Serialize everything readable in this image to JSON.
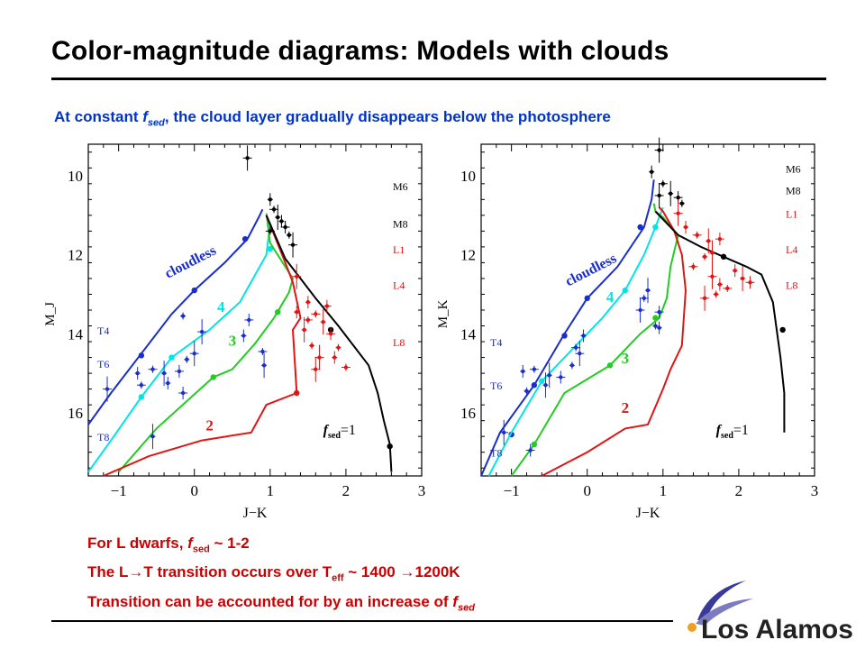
{
  "slide": {
    "title": "Color-magnitude diagrams: Models with clouds",
    "subtitle_pre": "At constant ",
    "subtitle_f": "f",
    "subtitle_sub": "sed",
    "subtitle_post": ", the cloud layer gradually disappears below the photosphere"
  },
  "notes": {
    "line1_pre": "For L dwarfs, ",
    "line1_f": "f",
    "line1_sub": "sed",
    "line1_post": " ~ 1-2",
    "line2_pre": "The L",
    "line2_arrow": "→",
    "line2_mid": "T transition occurs over T",
    "line2_sub": "eff",
    "line2_post": "  ~ 1400 ",
    "line2_arrow2": "→",
    "line2_end": "1200K",
    "line3_pre": "Transition can be accounted for by an increase of ",
    "line3_f": "f",
    "line3_sub": "sed"
  },
  "logo": {
    "text": "Los Alamos"
  },
  "colors": {
    "cloudless": "#1a2ecc",
    "fsed4": "#00e5e5",
    "fsed3": "#22cc22",
    "fsed2": "#e01515",
    "fsed1": "#000000",
    "tdwarf": "#1a2ecc",
    "ldwarf": "#e01515",
    "mdwarf": "#000000"
  },
  "chart_data": [
    {
      "type": "line",
      "xlabel": "J−K",
      "ylabel": "M_J",
      "xlim": [
        -1.4,
        3.0
      ],
      "ylim": [
        17.6,
        9.2
      ],
      "xticks": [
        "−1",
        "0",
        "1",
        "2",
        "3"
      ],
      "yticks": [
        "10",
        "12",
        "14",
        "16"
      ],
      "spectral_labels": [
        {
          "text": "M6",
          "y": 10.25,
          "group": "M"
        },
        {
          "text": "M8",
          "y": 11.2,
          "group": "M"
        },
        {
          "text": "L1",
          "y": 11.85,
          "group": "L"
        },
        {
          "text": "L4",
          "y": 12.75,
          "group": "L"
        },
        {
          "text": "L8",
          "y": 14.2,
          "group": "L"
        },
        {
          "text": "T4",
          "y": 13.9,
          "group": "T"
        },
        {
          "text": "T6",
          "y": 14.75,
          "group": "T"
        },
        {
          "text": "T8",
          "y": 16.6,
          "group": "T"
        }
      ],
      "series": [
        {
          "name": "cloudless",
          "color_key": "cloudless",
          "label_text": "cloudless",
          "label_at": [
            -0.35,
            12.6
          ],
          "x": [
            -1.4,
            -1.1,
            -0.7,
            -0.3,
            0.0,
            0.4,
            0.7,
            0.85,
            0.9
          ],
          "y": [
            16.3,
            15.5,
            14.5,
            13.5,
            12.9,
            12.2,
            11.6,
            11.05,
            10.85
          ],
          "markers": [
            [
              -0.7,
              14.55
            ],
            [
              0.0,
              12.9
            ],
            [
              0.67,
              11.6
            ]
          ]
        },
        {
          "name": "4",
          "color_key": "fsed4",
          "label_text": "4",
          "label_at": [
            0.3,
            13.45
          ],
          "x": [
            -1.4,
            -1.1,
            -0.7,
            -0.3,
            0.2,
            0.6,
            0.95,
            1.0
          ],
          "y": [
            17.5,
            16.7,
            15.6,
            14.6,
            13.9,
            13.2,
            12.0,
            11.2
          ],
          "markers": [
            [
              -0.7,
              15.6
            ],
            [
              -0.3,
              14.6
            ],
            [
              1.0,
              11.85
            ]
          ]
        },
        {
          "name": "3",
          "color_key": "fsed3",
          "label_text": "3",
          "label_at": [
            0.45,
            14.3
          ],
          "x": [
            -1.0,
            -0.5,
            0.25,
            0.5,
            0.8,
            1.05,
            1.25,
            1.3,
            1.0,
            0.95
          ],
          "y": [
            17.5,
            16.4,
            15.1,
            14.9,
            14.25,
            13.6,
            12.95,
            12.6,
            11.7,
            10.95
          ],
          "markers": [
            [
              0.25,
              15.1
            ],
            [
              1.1,
              13.45
            ]
          ]
        },
        {
          "name": "2",
          "color_key": "fsed2",
          "label_text": "2",
          "label_at": [
            0.15,
            16.45
          ],
          "x": [
            -1.2,
            -0.6,
            0.1,
            0.75,
            0.95,
            1.35,
            1.3,
            1.4,
            1.3,
            1.2,
            0.95
          ],
          "y": [
            17.6,
            17.1,
            16.7,
            16.5,
            15.8,
            15.5,
            13.9,
            13.6,
            12.7,
            12.2,
            11.0
          ],
          "markers": [
            [
              1.35,
              15.5
            ]
          ]
        },
        {
          "name": "f_sed = 1",
          "color_key": "fsed1",
          "label_text": "f",
          "label_at": [
            1.7,
            16.55
          ],
          "x": [
            0.95,
            1.2,
            1.6,
            1.9,
            2.1,
            2.3,
            2.42,
            2.5,
            2.58,
            2.6
          ],
          "y": [
            11.0,
            12.1,
            13.1,
            13.8,
            14.3,
            14.8,
            15.5,
            16.2,
            16.8,
            17.5
          ],
          "markers": [
            [
              1.8,
              13.9
            ],
            [
              2.58,
              16.85
            ]
          ]
        }
      ],
      "observed": {
        "M": [
          [
            0.7,
            9.55
          ],
          [
            1.0,
            10.6
          ],
          [
            1.05,
            10.85
          ],
          [
            1.1,
            11.05
          ],
          [
            1.2,
            11.3
          ],
          [
            1.25,
            11.5
          ],
          [
            1.3,
            11.75
          ],
          [
            1.15,
            11.15
          ],
          [
            1.0,
            11.4
          ]
        ],
        "L": [
          [
            1.35,
            12.55
          ],
          [
            1.5,
            13.2
          ],
          [
            1.6,
            13.5
          ],
          [
            1.7,
            13.7
          ],
          [
            1.8,
            14.0
          ],
          [
            1.55,
            14.3
          ],
          [
            1.65,
            14.6
          ],
          [
            1.85,
            14.6
          ],
          [
            2.0,
            14.85
          ],
          [
            1.45,
            13.9
          ],
          [
            1.75,
            13.3
          ],
          [
            1.9,
            14.35
          ],
          [
            1.6,
            14.9
          ],
          [
            1.35,
            13.45
          ],
          [
            1.5,
            13.65
          ]
        ],
        "T": [
          [
            -1.15,
            15.4
          ],
          [
            -0.75,
            15.0
          ],
          [
            -0.55,
            14.9
          ],
          [
            -0.4,
            15.0
          ],
          [
            -0.2,
            14.95
          ],
          [
            -0.1,
            14.65
          ],
          [
            0.0,
            14.5
          ],
          [
            -0.35,
            15.25
          ],
          [
            -0.7,
            15.3
          ],
          [
            -0.55,
            16.6
          ],
          [
            -0.15,
            15.5
          ],
          [
            -0.15,
            13.55
          ],
          [
            0.1,
            13.95
          ],
          [
            0.65,
            14.05
          ],
          [
            0.9,
            14.45
          ],
          [
            0.92,
            14.8
          ],
          [
            0.72,
            13.65
          ]
        ]
      }
    },
    {
      "type": "line",
      "xlabel": "J−K",
      "ylabel": "M_K",
      "xlim": [
        -1.4,
        3.0
      ],
      "ylim": [
        17.6,
        9.2
      ],
      "xticks": [
        "−1",
        "0",
        "1",
        "2",
        "3"
      ],
      "yticks": [
        "10",
        "12",
        "14",
        "16"
      ],
      "spectral_labels": [
        {
          "text": "M6",
          "y": 9.8,
          "group": "M"
        },
        {
          "text": "M8",
          "y": 10.35,
          "group": "M"
        },
        {
          "text": "L1",
          "y": 10.95,
          "group": "L"
        },
        {
          "text": "L4",
          "y": 11.85,
          "group": "L"
        },
        {
          "text": "L8",
          "y": 12.75,
          "group": "L"
        },
        {
          "text": "T4",
          "y": 14.2,
          "group": "T"
        },
        {
          "text": "T6",
          "y": 15.3,
          "group": "T"
        },
        {
          "text": "T8",
          "y": 17.0,
          "group": "T"
        }
      ],
      "series": [
        {
          "name": "cloudless",
          "color_key": "cloudless",
          "label_text": "cloudless",
          "label_at": [
            -0.25,
            12.8
          ],
          "x": [
            -1.4,
            -1.15,
            -0.7,
            -0.3,
            0.0,
            0.4,
            0.75,
            0.85,
            0.88
          ],
          "y": [
            17.6,
            16.5,
            15.3,
            14.0,
            13.1,
            12.3,
            11.3,
            10.6,
            10.1
          ],
          "markers": [
            [
              -1.0,
              16.55
            ],
            [
              -0.7,
              15.3
            ],
            [
              -0.3,
              14.05
            ],
            [
              0.0,
              13.1
            ],
            [
              0.7,
              11.3
            ]
          ]
        },
        {
          "name": "4",
          "color_key": "fsed4",
          "label_text": "4",
          "label_at": [
            0.25,
            13.2
          ],
          "x": [
            -1.3,
            -1.0,
            -0.6,
            -0.2,
            0.2,
            0.5,
            0.75,
            0.9,
            1.0
          ],
          "y": [
            17.6,
            16.5,
            15.2,
            14.4,
            13.6,
            12.9,
            12.0,
            11.3,
            10.8
          ],
          "markers": [
            [
              -0.6,
              15.2
            ],
            [
              0.5,
              12.9
            ],
            [
              0.9,
              11.3
            ]
          ]
        },
        {
          "name": "3",
          "color_key": "fsed3",
          "label_text": "3",
          "label_at": [
            0.45,
            14.75
          ],
          "x": [
            -1.0,
            -0.7,
            -0.3,
            0.3,
            0.7,
            0.95,
            1.05,
            1.1,
            1.2,
            1.0,
            0.9,
            0.88
          ],
          "y": [
            17.6,
            16.8,
            15.5,
            14.8,
            14.0,
            13.6,
            13.1,
            12.3,
            11.5,
            11.05,
            10.9,
            10.7
          ],
          "markers": [
            [
              -0.7,
              16.8
            ],
            [
              0.3,
              14.8
            ],
            [
              0.9,
              13.6
            ]
          ]
        },
        {
          "name": "2",
          "color_key": "fsed2",
          "label_text": "2",
          "label_at": [
            0.45,
            16.0
          ],
          "x": [
            -0.6,
            0.0,
            0.5,
            0.8,
            1.0,
            1.1,
            1.25,
            1.3,
            1.25,
            1.15,
            1.0,
            0.95
          ],
          "y": [
            17.6,
            17.0,
            16.4,
            16.3,
            15.4,
            14.9,
            14.3,
            12.9,
            12.0,
            11.4,
            10.9,
            10.8
          ],
          "markers": []
        },
        {
          "name": "f_sed = 1",
          "color_key": "fsed1",
          "label_text": "f",
          "label_at": [
            1.7,
            16.55
          ],
          "x": [
            0.9,
            1.2,
            1.5,
            1.8,
            2.1,
            2.3,
            2.45,
            2.5,
            2.55,
            2.6,
            2.6
          ],
          "y": [
            10.9,
            11.5,
            11.8,
            12.05,
            12.3,
            12.5,
            13.2,
            13.9,
            14.6,
            15.5,
            16.5
          ],
          "markers": [
            [
              1.8,
              12.05
            ],
            [
              2.58,
              13.9
            ]
          ]
        }
      ],
      "observed": {
        "M": [
          [
            0.95,
            9.35
          ],
          [
            0.85,
            9.9
          ],
          [
            1.0,
            10.2
          ],
          [
            1.1,
            10.45
          ],
          [
            1.2,
            10.55
          ],
          [
            1.25,
            10.7
          ],
          [
            0.95,
            10.5
          ]
        ],
        "L": [
          [
            1.2,
            10.95
          ],
          [
            1.3,
            11.3
          ],
          [
            1.45,
            11.5
          ],
          [
            1.6,
            11.65
          ],
          [
            1.75,
            11.6
          ],
          [
            1.55,
            12.05
          ],
          [
            1.65,
            12.55
          ],
          [
            1.75,
            12.75
          ],
          [
            1.85,
            12.85
          ],
          [
            2.05,
            12.6
          ],
          [
            2.15,
            12.7
          ],
          [
            1.7,
            13.0
          ],
          [
            1.55,
            13.1
          ],
          [
            1.95,
            12.4
          ],
          [
            1.4,
            12.3
          ],
          [
            1.65,
            11.95
          ]
        ],
        "T": [
          [
            -1.1,
            16.5
          ],
          [
            -0.85,
            14.95
          ],
          [
            -0.7,
            14.9
          ],
          [
            -0.5,
            15.05
          ],
          [
            -0.35,
            15.1
          ],
          [
            -0.2,
            14.8
          ],
          [
            -0.1,
            14.5
          ],
          [
            -0.05,
            14.05
          ],
          [
            -0.15,
            14.35
          ],
          [
            -0.55,
            15.3
          ],
          [
            -0.75,
            16.95
          ],
          [
            -0.8,
            15.45
          ],
          [
            0.7,
            13.4
          ],
          [
            0.95,
            13.85
          ],
          [
            0.75,
            13.1
          ],
          [
            0.8,
            12.9
          ],
          [
            0.95,
            13.45
          ],
          [
            0.9,
            13.8
          ]
        ]
      }
    }
  ]
}
